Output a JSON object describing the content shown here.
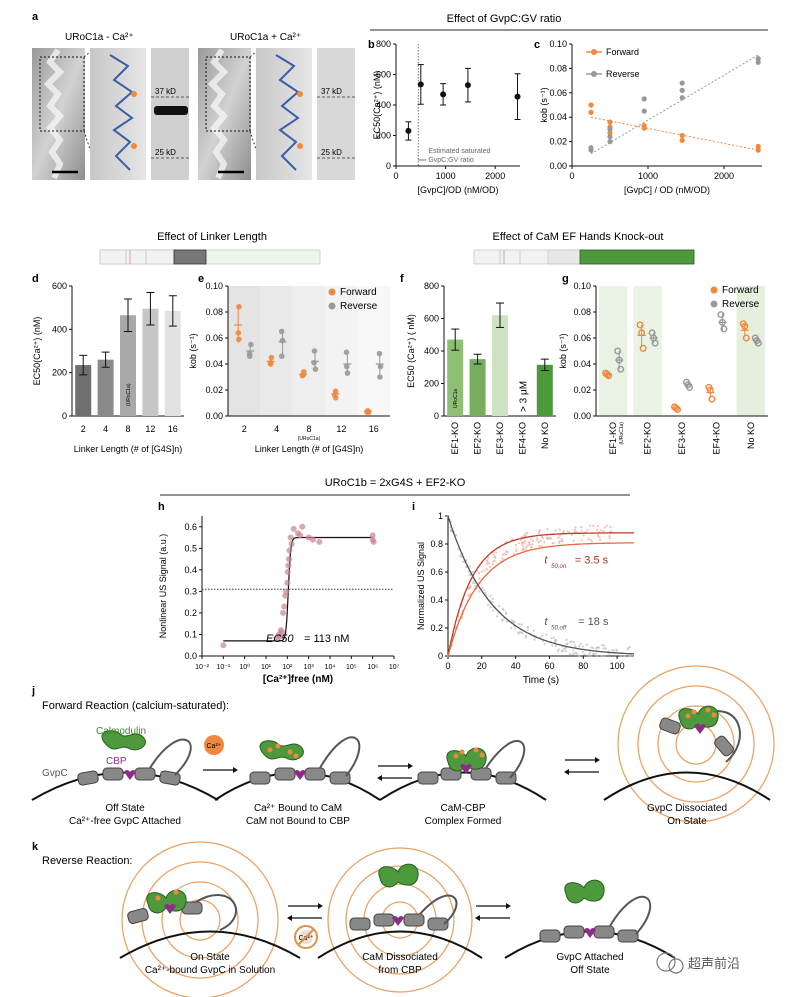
{
  "panel_letters": [
    "a",
    "b",
    "c",
    "d",
    "e",
    "f",
    "g",
    "h",
    "i",
    "j",
    "k"
  ],
  "panel_a": {
    "titles": [
      "URoC1a - Ca²⁺",
      "URoC1a + Ca²⁺"
    ],
    "bands": [
      "37 kD",
      "25 kD",
      "37 kD",
      "25 kD"
    ]
  },
  "headers": {
    "bc": "Effect of GvpC:GV ratio",
    "de": "Effect of Linker Length",
    "fg": "Effect of CaM EF Hands Knock-out",
    "hi": "URoC1b = 2xG4S + EF2-KO"
  },
  "chart_data": [
    {
      "panel": "b",
      "type": "scatter",
      "xlabel": "[GvpC]/OD (nM/OD)",
      "ylabel": "EC50(Ca²⁺) (nM)",
      "xlim": [
        0,
        2500
      ],
      "ylim": [
        0,
        800
      ],
      "xticks": [
        "0",
        "1000",
        "2000"
      ],
      "yticks": [
        "0",
        "200",
        "400",
        "600",
        "800"
      ],
      "x": [
        250,
        500,
        950,
        1450,
        2450
      ],
      "y": [
        230,
        535,
        470,
        530,
        455
      ],
      "err": [
        60,
        130,
        70,
        110,
        150
      ],
      "annotation": [
        "Estimated saturated",
        "GvpC:GV ratio"
      ],
      "vline_x": 450
    },
    {
      "panel": "c",
      "type": "scatter",
      "xlabel": "[GvpC] / OD (nM/OD)",
      "ylabel": "kob (s⁻¹)",
      "xlim": [
        0,
        2500
      ],
      "ylim": [
        0,
        0.1
      ],
      "xticks": [
        "0",
        "1000",
        "2000"
      ],
      "yticks": [
        "0.00",
        "0.02",
        "0.04",
        "0.06",
        "0.08",
        "0.10"
      ],
      "series": [
        {
          "name": "Forward",
          "color": "#f0883e",
          "x": [
            250,
            250,
            500,
            500,
            500,
            950,
            950,
            1450,
            1450,
            2450,
            2450
          ],
          "y": [
            0.05,
            0.044,
            0.036,
            0.032,
            0.027,
            0.033,
            0.031,
            0.025,
            0.021,
            0.016,
            0.013
          ],
          "fit": [
            [
              250,
              0.04
            ],
            [
              2450,
              0.013
            ]
          ]
        },
        {
          "name": "Reverse",
          "color": "#999999",
          "x": [
            250,
            250,
            500,
            500,
            500,
            950,
            950,
            1450,
            1450,
            1450,
            2450,
            2450
          ],
          "y": [
            0.015,
            0.013,
            0.03,
            0.024,
            0.02,
            0.055,
            0.045,
            0.068,
            0.062,
            0.056,
            0.088,
            0.085
          ],
          "fit": [
            [
              250,
              0.01
            ],
            [
              2450,
              0.091
            ]
          ]
        }
      ]
    },
    {
      "panel": "d",
      "type": "bar",
      "xlabel": "Linker Length (# of [G4S]n)",
      "ylabel": "EC50(Ca²⁺) (nM)",
      "categories": [
        "2",
        "4",
        "8",
        "12",
        "16"
      ],
      "values": [
        235,
        260,
        465,
        495,
        485
      ],
      "err": [
        45,
        35,
        75,
        75,
        70
      ],
      "colors": [
        "#6f6f6f",
        "#8a8a8a",
        "#a8a8a8",
        "#c6c6c6",
        "#e2e2e2"
      ],
      "bar_note": "(URoC1a)",
      "ylim": [
        0,
        600
      ],
      "yticks": [
        "0",
        "200",
        "400",
        "600"
      ]
    },
    {
      "panel": "e",
      "type": "scatter",
      "xlabel": "Linker Length (# of [G4S]n)",
      "ylabel": "kob (s⁻¹)",
      "categories": [
        "2",
        "4",
        "8",
        "12",
        "16"
      ],
      "sub_note": "(URoC1a)",
      "ylim": [
        0,
        0.1
      ],
      "yticks": [
        "0.00",
        "0.02",
        "0.04",
        "0.06",
        "0.08",
        "0.10"
      ],
      "series": [
        {
          "name": "Forward",
          "color": "#f0883e",
          "mean": [
            0.07,
            0.042,
            0.032,
            0.017,
            0.004
          ],
          "err": [
            0.014,
            0.004,
            0.002,
            0.003,
            0.001
          ],
          "points": [
            [
              0.084,
              0.064,
              0.059
            ],
            [
              0.045,
              0.041,
              0.04
            ],
            [
              0.034,
              0.032,
              0.031
            ],
            [
              0.019,
              0.016,
              0.014
            ],
            [
              0.004,
              0.003,
              0.003
            ]
          ]
        },
        {
          "name": "Reverse",
          "color": "#999999",
          "mean": [
            0.05,
            0.057,
            0.042,
            0.04,
            0.04
          ],
          "err": [
            0.005,
            0.01,
            0.006,
            0.007,
            0.008
          ],
          "points": [
            [
              0.055,
              0.048,
              0.046
            ],
            [
              0.065,
              0.058,
              0.046
            ],
            [
              0.05,
              0.041,
              0.036
            ],
            [
              0.049,
              0.038,
              0.033
            ],
            [
              0.048,
              0.038,
              0.03
            ]
          ]
        }
      ]
    },
    {
      "panel": "f",
      "type": "bar",
      "ylabel": "EC50 (Ca²⁺) ( nM)",
      "categories": [
        "EF1-KO",
        "EF2-KO",
        "EF3-KO",
        "EF4-KO",
        "No KO"
      ],
      "values": [
        470,
        350,
        620,
        null,
        315
      ],
      "err": [
        65,
        30,
        75,
        null,
        35
      ],
      "colors": [
        "#8fbf74",
        "#77ad5e",
        "#cfe3c3",
        "#ffffff",
        "#4c9a3b"
      ],
      "bar_note": "URoC1a",
      "na_label": "> 3 μM",
      "ylim": [
        0,
        800
      ],
      "yticks": [
        "0",
        "200",
        "400",
        "600",
        "800"
      ]
    },
    {
      "panel": "g",
      "type": "scatter",
      "ylabel": "kob (s⁻¹)",
      "categories": [
        "EF1-KO",
        "EF2-KO",
        "EF3-KO",
        "EF4-KO",
        "No KO"
      ],
      "sub_note": "(URoC1a)",
      "ylim": [
        0,
        0.1
      ],
      "yticks": [
        "0.00",
        "0.02",
        "0.04",
        "0.06",
        "0.08",
        "0.10"
      ],
      "series": [
        {
          "name": "Forward",
          "color": "#f0883e",
          "mean": [
            0.032,
            0.062,
            0.006,
            0.018,
            0.066
          ],
          "err": [
            0.002,
            0.008,
            0.001,
            0.004,
            0.005
          ],
          "points": [
            [
              0.033,
              0.032,
              0.031
            ],
            [
              0.07,
              0.064,
              0.052
            ],
            [
              0.007,
              0.006,
              0.005
            ],
            [
              0.022,
              0.02,
              0.013
            ],
            [
              0.071,
              0.069,
              0.06
            ]
          ]
        },
        {
          "name": "Reverse",
          "color": "#999999",
          "mean": [
            0.043,
            0.06,
            0.024,
            0.072,
            0.058
          ],
          "err": [
            0.007,
            0.004,
            0.002,
            0.007,
            0.003
          ],
          "points": [
            [
              0.05,
              0.043,
              0.036
            ],
            [
              0.064,
              0.06,
              0.056
            ],
            [
              0.026,
              0.024,
              0.022
            ],
            [
              0.078,
              0.072,
              0.067
            ],
            [
              0.06,
              0.058,
              0.056
            ]
          ]
        }
      ]
    },
    {
      "panel": "h",
      "type": "scatter",
      "xlabel": "[Ca²⁺]free (nM)",
      "ylabel": "Nonlinear US Signal (a.u.)",
      "xscale": "log",
      "xlim_exp": [
        -2,
        7
      ],
      "ylim": [
        0,
        0.65
      ],
      "xticks": [
        "10⁻²",
        "10⁻¹",
        "10⁰",
        "10¹",
        "10²",
        "10³",
        "10⁴",
        "10⁵",
        "10⁶",
        "10⁷"
      ],
      "yticks": [
        "0.0",
        "0.1",
        "0.2",
        "0.3",
        "0.4",
        "0.5",
        "0.6"
      ],
      "log10x": [
        -1,
        1.5,
        1.6,
        1.65,
        1.7,
        1.75,
        1.8,
        1.85,
        1.9,
        1.95,
        2.0,
        2.02,
        2.05,
        2.08,
        2.1,
        2.15,
        2.2,
        2.3,
        2.5,
        2.6,
        2.7,
        3.0,
        3.2,
        3.5,
        6.0,
        6.0,
        6.05
      ],
      "y": [
        0.05,
        0.08,
        0.1,
        0.09,
        0.12,
        0.11,
        0.2,
        0.23,
        0.28,
        0.3,
        0.34,
        0.39,
        0.42,
        0.45,
        0.49,
        0.55,
        0.52,
        0.59,
        0.57,
        0.56,
        0.6,
        0.55,
        0.54,
        0.53,
        0.56,
        0.54,
        0.53
      ],
      "dotted_y": 0.31,
      "fit_low": 0.07,
      "fit_high": 0.55,
      "fit_log_ec50": 2.05,
      "annotation": {
        "label": "EC50",
        "value": "= 113 nM"
      }
    },
    {
      "panel": "i",
      "type": "line",
      "xlabel": "Time (s)",
      "ylabel": "Normalized US Signal",
      "xlim": [
        0,
        110
      ],
      "ylim": [
        0,
        1
      ],
      "xticks": [
        "0",
        "20",
        "40",
        "60",
        "80",
        "100"
      ],
      "yticks": [
        "0",
        "0.2",
        "0.4",
        "0.6",
        "0.8",
        "1"
      ],
      "series": [
        {
          "name": "on",
          "color": "#c0392b",
          "tau": 3.5,
          "plateau": 0.88
        },
        {
          "name": "on-2",
          "color": "#e56c3d",
          "tau": 4.5,
          "plateau": 0.81
        },
        {
          "name": "off",
          "color": "#555555",
          "tau": 18,
          "start": 1.0
        }
      ],
      "annotations": [
        {
          "label": "t",
          "sub": "50,on",
          "value": "= 3.5 s",
          "color": "#b03020"
        },
        {
          "label": "t",
          "sub": "50,off",
          "value": "= 18 s",
          "color": "#555555"
        }
      ]
    }
  ],
  "panel_j": {
    "title": "Forward Reaction (calcium-saturated):",
    "labels": {
      "calmodulin": "Calmodulin",
      "gvpc": "GvpC",
      "cbp": "CBP",
      "ca": "Ca²⁺"
    },
    "states": [
      [
        "Off State",
        "Ca²⁺-free GvpC Attached"
      ],
      [
        "Ca²⁺ Bound to CaM",
        "CaM not Bound to CBP"
      ],
      [
        "CaM-CBP",
        "Complex Formed"
      ],
      [
        "GvpC Dissociated",
        "On State"
      ]
    ]
  },
  "panel_k": {
    "title": "Reverse Reaction:",
    "ca_label": "Ca²⁺",
    "states": [
      [
        "On State",
        "Ca²⁺-bound GvpC in Solution"
      ],
      [
        "CaM Dissociated",
        "from CBP"
      ],
      [
        "GvpC Attached",
        "Off State"
      ]
    ]
  },
  "watermark": "超声前沿"
}
